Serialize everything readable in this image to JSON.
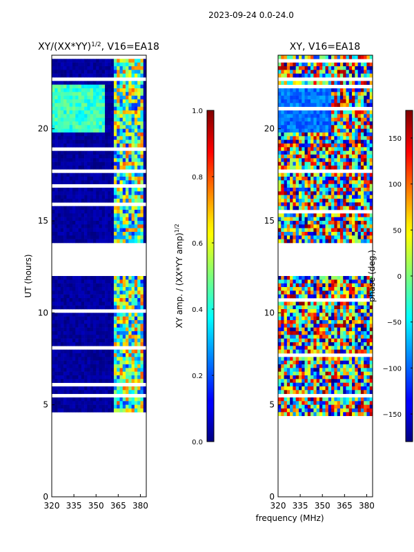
{
  "chart_data": [
    {
      "type": "heatmap",
      "suptitle": "2023-09-24 0.0-24.0",
      "title": "XY/(XX*YY)",
      "title_sup": "1/2",
      "title_suffix": ", V16=EA18",
      "ylabel": "UT (hours)",
      "xlim": [
        320,
        384
      ],
      "ylim": [
        0,
        24
      ],
      "xticks": [
        "320",
        "335",
        "350",
        "365",
        "380"
      ],
      "xtick_values": [
        320,
        335,
        350,
        365,
        380
      ],
      "yticks": [
        "0",
        "5",
        "10",
        "15",
        "20"
      ],
      "ytick_values": [
        0,
        5,
        10,
        15,
        20
      ],
      "colorbar": {
        "label": "XY amp. / (XX*YY amp)",
        "label_sup": "1/2",
        "range": [
          0.0,
          1.0
        ],
        "ticks": [
          "0.0",
          "0.2",
          "0.4",
          "0.6",
          "0.8",
          "1.0"
        ],
        "tick_values": [
          0.0,
          0.2,
          0.4,
          0.6,
          0.8,
          1.0
        ]
      },
      "data_segments_hours": [
        [
          0.0,
          0.1
        ],
        [
          4.4,
          12.0
        ],
        [
          13.8,
          22.6
        ],
        [
          22.9,
          24.0
        ]
      ],
      "notes": "low amplitude (~0.0-0.05) below 361 MHz; elevated 0.2-0.8 near 361-382 MHz; ~0.4-0.5 patch 320-355 MHz at 20-22.5 h"
    },
    {
      "type": "heatmap",
      "title": "XY, V16=EA18",
      "xlabel": "frequency (MHz)",
      "xlim": [
        320,
        384
      ],
      "ylim": [
        0,
        24
      ],
      "xticks": [
        "320",
        "335",
        "350",
        "365",
        "380"
      ],
      "xtick_values": [
        320,
        335,
        350,
        365,
        380
      ],
      "yticks": [
        "0",
        "5",
        "10",
        "15",
        "20"
      ],
      "ytick_values": [
        0,
        5,
        10,
        15,
        20
      ],
      "colorbar": {
        "label": "phase (deg.)",
        "range": [
          -180,
          180
        ],
        "ticks": [
          "−150",
          "−100",
          "−50",
          "0",
          "50",
          "100",
          "150"
        ],
        "tick_values": [
          -150,
          -100,
          -50,
          0,
          50,
          100,
          150
        ]
      },
      "data_segments_hours": [
        [
          0.0,
          0.1
        ],
        [
          4.4,
          12.0
        ],
        [
          13.8,
          22.6
        ],
        [
          22.9,
          24.0
        ]
      ],
      "notes": "noisy phase over full range -180..180; smooth ~-100 deg band 320-355 MHz at 20-22 h"
    }
  ]
}
